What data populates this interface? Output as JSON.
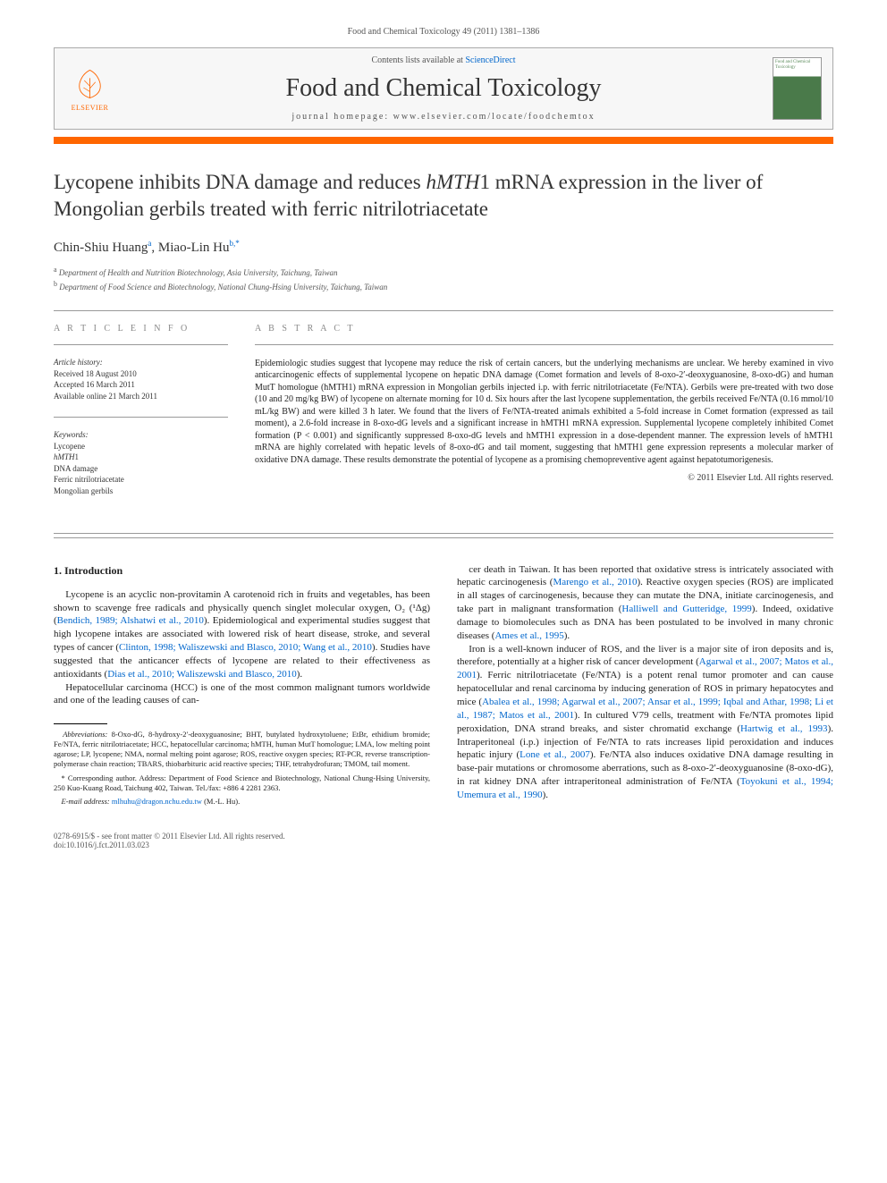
{
  "citation": "Food and Chemical Toxicology 49 (2011) 1381–1386",
  "header": {
    "contents_prefix": "Contents lists available at ",
    "contents_link": "ScienceDirect",
    "journal_name": "Food and Chemical Toxicology",
    "homepage_prefix": "journal homepage: ",
    "homepage_url": "www.elsevier.com/locate/foodchemtox",
    "publisher_label": "ELSEVIER",
    "cover_label": "Food and Chemical Toxicology"
  },
  "title_part1": "Lycopene inhibits DNA damage and reduces ",
  "title_italic": "hMTH",
  "title_part2": "1 mRNA expression in the liver of Mongolian gerbils treated with ferric nitrilotriacetate",
  "authors_html": "Chin-Shiu Huang<sup>a</sup>, Miao-Lin Hu<sup>b,*</sup>",
  "affiliations": [
    "a Department of Health and Nutrition Biotechnology, Asia University, Taichung, Taiwan",
    "b Department of Food Science and Biotechnology, National Chung-Hsing University, Taichung, Taiwan"
  ],
  "article_info": {
    "heading": "A R T I C L E   I N F O",
    "history_head": "Article history:",
    "history": [
      "Received 18 August 2010",
      "Accepted 16 March 2011",
      "Available online 21 March 2011"
    ],
    "keywords_head": "Keywords:",
    "keywords": [
      "Lycopene",
      "hMTH1",
      "DNA damage",
      "Ferric nitrilotriacetate",
      "Mongolian gerbils"
    ]
  },
  "abstract": {
    "heading": "A B S T R A C T",
    "text": "Epidemiologic studies suggest that lycopene may reduce the risk of certain cancers, but the underlying mechanisms are unclear. We hereby examined in vivo anticarcinogenic effects of supplemental lycopene on hepatic DNA damage (Comet formation and levels of 8-oxo-2′-deoxyguanosine, 8-oxo-dG) and human MutT homologue (hMTH1) mRNA expression in Mongolian gerbils injected i.p. with ferric nitrilotriacetate (Fe/NTA). Gerbils were pre-treated with two dose (10 and 20 mg/kg BW) of lycopene on alternate morning for 10 d. Six hours after the last lycopene supplementation, the gerbils received Fe/NTA (0.16 mmol/10 mL/kg BW) and were killed 3 h later. We found that the livers of Fe/NTA-treated animals exhibited a 5-fold increase in Comet formation (expressed as tail moment), a 2.6-fold increase in 8-oxo-dG levels and a significant increase in hMTH1 mRNA expression. Supplemental lycopene completely inhibited Comet formation (P < 0.001) and significantly suppressed 8-oxo-dG levels and hMTH1 expression in a dose-dependent manner. The expression levels of hMTH1 mRNA are highly correlated with hepatic levels of 8-oxo-dG and tail moment, suggesting that hMTH1 gene expression represents a molecular marker of oxidative DNA damage. These results demonstrate the potential of lycopene as a promising chemopreventive agent against hepatotumorigenesis.",
    "copyright": "© 2011 Elsevier Ltd. All rights reserved."
  },
  "body": {
    "section_num": "1.",
    "section_title": "Introduction",
    "left": [
      "Lycopene is an acyclic non-provitamin A carotenoid rich in fruits and vegetables, has been shown to scavenge free radicals and physically quench singlet molecular oxygen, O₂ (¹Δg) (Bendich, 1989; Alshatwi et al., 2010). Epidemiological and experimental studies suggest that high lycopene intakes are associated with lowered risk of heart disease, stroke, and several types of cancer (Clinton, 1998; Waliszewski and Blasco, 2010; Wang et al., 2010). Studies have suggested that the anticancer effects of lycopene are related to their effectiveness as antioxidants (Dias et al., 2010; Waliszewski and Blasco, 2010).",
      "Hepatocellular carcinoma (HCC) is one of the most common malignant tumors worldwide and one of the leading causes of can-"
    ],
    "right": [
      "cer death in Taiwan. It has been reported that oxidative stress is intricately associated with hepatic carcinogenesis (Marengo et al., 2010). Reactive oxygen species (ROS) are implicated in all stages of carcinogenesis, because they can mutate the DNA, initiate carcinogenesis, and take part in malignant transformation (Halliwell and Gutteridge, 1999). Indeed, oxidative damage to biomolecules such as DNA has been postulated to be involved in many chronic diseases (Ames et al., 1995).",
      "Iron is a well-known inducer of ROS, and the liver is a major site of iron deposits and is, therefore, potentially at a higher risk of cancer development (Agarwal et al., 2007; Matos et al., 2001). Ferric nitrilotriacetate (Fe/NTA) is a potent renal tumor promoter and can cause hepatocellular and renal carcinoma by inducing generation of ROS in primary hepatocytes and mice (Abalea et al., 1998; Agarwal et al., 2007; Ansar et al., 1999; Iqbal and Athar, 1998; Li et al., 1987; Matos et al., 2001). In cultured V79 cells, treatment with Fe/NTA promotes lipid peroxidation, DNA strand breaks, and sister chromatid exchange (Hartwig et al., 1993). Intraperitoneal (i.p.) injection of Fe/NTA to rats increases lipid peroxidation and induces hepatic injury (Lone et al., 2007). Fe/NTA also induces oxidative DNA damage resulting in base-pair mutations or chromosome aberrations, such as 8-oxo-2′-deoxyguanosine (8-oxo-dG), in rat kidney DNA after intraperitoneal administration of Fe/NTA (Toyokuni et al., 1994; Umemura et al., 1990)."
    ]
  },
  "footnotes": {
    "abbrev_label": "Abbreviations:",
    "abbrev_text": " 8-Oxo-dG, 8-hydroxy-2′-deoxyguanosine; BHT, butylated hydroxytoluene; EtBr, ethidium bromide; Fe/NTA, ferric nitrilotriacetate; HCC, hepatocellular carcinoma; hMTH, human MutT homologue; LMA, low melting point agarose; LP, lycopene; NMA, normal melting point agarose; ROS, reactive oxygen species; RT-PCR, reverse transcription-polymerase chain reaction; TBARS, thiobarbituric acid reactive species; THF, tetrahydrofuran; TMOM, tail moment.",
    "corresponding": "* Corresponding author. Address: Department of Food Science and Biotechnology, National Chung-Hsing University, 250 Kuo-Kuang Road, Taichung 402, Taiwan. Tel./fax: +886 4 2281 2363.",
    "email_label": "E-mail address:",
    "email": "mlhuhu@dragon.nchu.edu.tw",
    "email_suffix": " (M.-L. Hu)."
  },
  "footer": {
    "left1": "0278-6915/$ - see front matter © 2011 Elsevier Ltd. All rights reserved.",
    "left2": "doi:10.1016/j.fct.2011.03.023"
  },
  "colors": {
    "orange": "#ff6600",
    "link": "#0066cc",
    "rule": "#999999",
    "text": "#222222",
    "muted": "#555555"
  }
}
